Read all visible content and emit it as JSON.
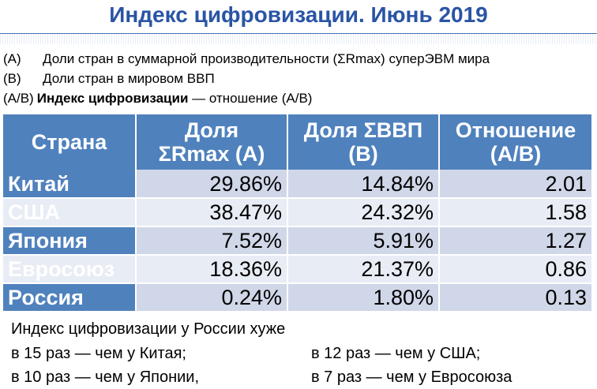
{
  "title": "Индекс цифровизации.  Июнь 2019",
  "legend": [
    {
      "code": "(A)",
      "text": "Доли стран в суммарной производительности (ΣRmax) суперЭВМ мира"
    },
    {
      "code": "(B)",
      "text": "Доли стран в мировом ВВП"
    },
    {
      "code": "(A/B)",
      "bold": "Индекс цифровизации",
      "text": " — отношение (A/B)"
    }
  ],
  "table": {
    "headers": [
      {
        "line1": "Страна",
        "line2": ""
      },
      {
        "line1": "Доля",
        "line2": "ΣRmax (A)"
      },
      {
        "line1": "Доля ΣВВП",
        "line2": "(B)"
      },
      {
        "line1": "Отношение",
        "line2": "(A/B)"
      }
    ],
    "rows": [
      {
        "country": "Китай",
        "a": "29.86%",
        "b": "14.84%",
        "ratio": "2.01"
      },
      {
        "country": "США",
        "a": "38.47%",
        "b": "24.32%",
        "ratio": "1.58"
      },
      {
        "country": "Япония",
        "a": "7.52%",
        "b": "5.91%",
        "ratio": "1.27"
      },
      {
        "country": "Евросоюз",
        "a": "18.36%",
        "b": "21.37%",
        "ratio": "0.86"
      },
      {
        "country": "Россия",
        "a": "0.24%",
        "b": "1.80%",
        "ratio": "0.13"
      }
    ]
  },
  "summary": {
    "intro": "Индекс цифровизации у России хуже",
    "items": [
      "в 15 раз — чем у Китая;",
      "в 12 раз — чем у США;",
      "в 10 раз — чем у Японии,",
      "в 7 раз — чем у Евросоюза"
    ]
  },
  "colors": {
    "title": "#2a54a5",
    "header_bg": "#4f81bd",
    "row_bg": "#cfd7e8",
    "row_alt_bg": "#e8ecf4"
  }
}
